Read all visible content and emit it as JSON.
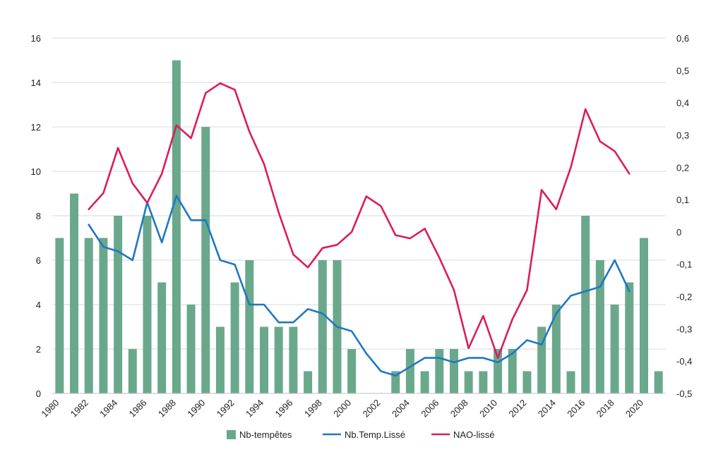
{
  "chart_data": {
    "type": "bar",
    "x": [
      1980,
      1981,
      1982,
      1983,
      1984,
      1985,
      1986,
      1987,
      1988,
      1989,
      1990,
      1991,
      1992,
      1993,
      1994,
      1995,
      1996,
      1997,
      1998,
      1999,
      2000,
      2001,
      2002,
      2003,
      2004,
      2005,
      2006,
      2007,
      2008,
      2009,
      2010,
      2011,
      2012,
      2013,
      2014,
      2015,
      2016,
      2017,
      2018,
      2019,
      2020,
      2021
    ],
    "series": [
      {
        "name": "Nb-tempêtes",
        "type": "bar",
        "axis": "left",
        "color": "#6aa88c",
        "values": [
          7,
          9,
          7,
          7,
          8,
          2,
          8,
          5,
          15,
          4,
          12,
          3,
          5,
          6,
          3,
          3,
          3,
          1,
          6,
          6,
          2,
          0,
          0,
          1,
          2,
          1,
          2,
          2,
          1,
          1,
          2,
          2,
          1,
          3,
          4,
          1,
          8,
          6,
          4,
          5,
          7,
          1
        ]
      },
      {
        "name": "Nb.Temp.Lissé",
        "type": "line",
        "axis": "left",
        "color": "#1f78c1",
        "values": [
          null,
          null,
          7.6,
          6.6,
          6.4,
          6.0,
          8.6,
          6.8,
          8.9,
          7.8,
          7.8,
          6.0,
          5.8,
          4.0,
          4.0,
          3.2,
          3.2,
          3.8,
          3.6,
          3.0,
          2.8,
          1.8,
          1.0,
          0.8,
          1.2,
          1.6,
          1.6,
          1.4,
          1.6,
          1.6,
          1.4,
          1.8,
          2.4,
          2.2,
          3.6,
          4.4,
          4.6,
          4.8,
          6.0,
          4.6,
          null,
          null
        ]
      },
      {
        "name": "NAO-lissé",
        "type": "line",
        "axis": "right",
        "color": "#dc1c5c",
        "values": [
          null,
          null,
          0.07,
          0.12,
          0.26,
          0.15,
          0.09,
          0.18,
          0.33,
          0.29,
          0.43,
          0.46,
          0.44,
          0.31,
          0.21,
          0.06,
          -0.07,
          -0.11,
          -0.05,
          -0.04,
          0.0,
          0.11,
          0.08,
          -0.01,
          -0.02,
          0.01,
          -0.08,
          -0.18,
          -0.36,
          -0.26,
          -0.39,
          -0.27,
          -0.18,
          0.13,
          0.07,
          0.2,
          0.38,
          0.28,
          0.25,
          0.18,
          null,
          null
        ]
      }
    ],
    "left_axis": {
      "ylim": [
        0,
        16
      ],
      "ticks": [
        "0",
        "2",
        "4",
        "6",
        "8",
        "10",
        "12",
        "14",
        "16"
      ]
    },
    "right_axis": {
      "ylim": [
        -0.5,
        0.6
      ],
      "ticks": [
        "-0,5",
        "-0,4",
        "-0,3",
        "-0,2",
        "-0,1",
        "0",
        "0,1",
        "0,2",
        "0,3",
        "0,4",
        "0,5",
        "0,6"
      ]
    },
    "x_tick_labels": [
      "1980",
      "1982",
      "1984",
      "1986",
      "1988",
      "1990",
      "1992",
      "1994",
      "1996",
      "1998",
      "2000",
      "2002",
      "2004",
      "2006",
      "2008",
      "2010",
      "2012",
      "2014",
      "2016",
      "2018",
      "2020"
    ],
    "grid": true,
    "legend_position": "bottom",
    "title": "",
    "xlabel": "",
    "ylabel": ""
  }
}
